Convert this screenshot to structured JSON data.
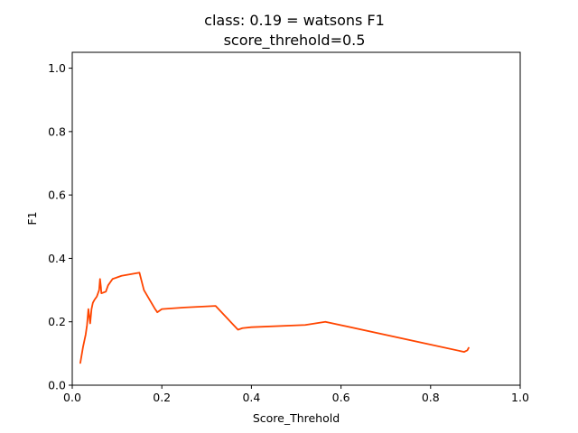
{
  "chart_data": {
    "type": "line",
    "title": "class: 0.19 = watsons F1",
    "subtitle": "score_threhold=0.5",
    "xlabel": "Score_Threhold",
    "ylabel": "F1",
    "xlim": [
      0.0,
      1.0
    ],
    "ylim": [
      0.0,
      1.05
    ],
    "xticks": [
      "0.0",
      "0.2",
      "0.4",
      "0.6",
      "0.8",
      "1.0"
    ],
    "yticks": [
      "0.0",
      "0.2",
      "0.4",
      "0.6",
      "0.8",
      "1.0"
    ],
    "grid": false,
    "series": [
      {
        "color": "#ff4500",
        "x": [
          0.018,
          0.024,
          0.027,
          0.03,
          0.033,
          0.036,
          0.04,
          0.043,
          0.046,
          0.05,
          0.055,
          0.06,
          0.062,
          0.064,
          0.065,
          0.075,
          0.08,
          0.09,
          0.1,
          0.11,
          0.13,
          0.15,
          0.16,
          0.185,
          0.19,
          0.2,
          0.25,
          0.32,
          0.37,
          0.38,
          0.4,
          0.52,
          0.565,
          0.875,
          0.882,
          0.885
        ],
        "y": [
          0.07,
          0.12,
          0.14,
          0.16,
          0.19,
          0.24,
          0.195,
          0.24,
          0.26,
          0.27,
          0.28,
          0.3,
          0.335,
          0.31,
          0.29,
          0.295,
          0.315,
          0.335,
          0.34,
          0.345,
          0.35,
          0.355,
          0.3,
          0.24,
          0.23,
          0.24,
          0.245,
          0.25,
          0.175,
          0.18,
          0.183,
          0.19,
          0.2,
          0.105,
          0.11,
          0.118
        ]
      }
    ]
  }
}
